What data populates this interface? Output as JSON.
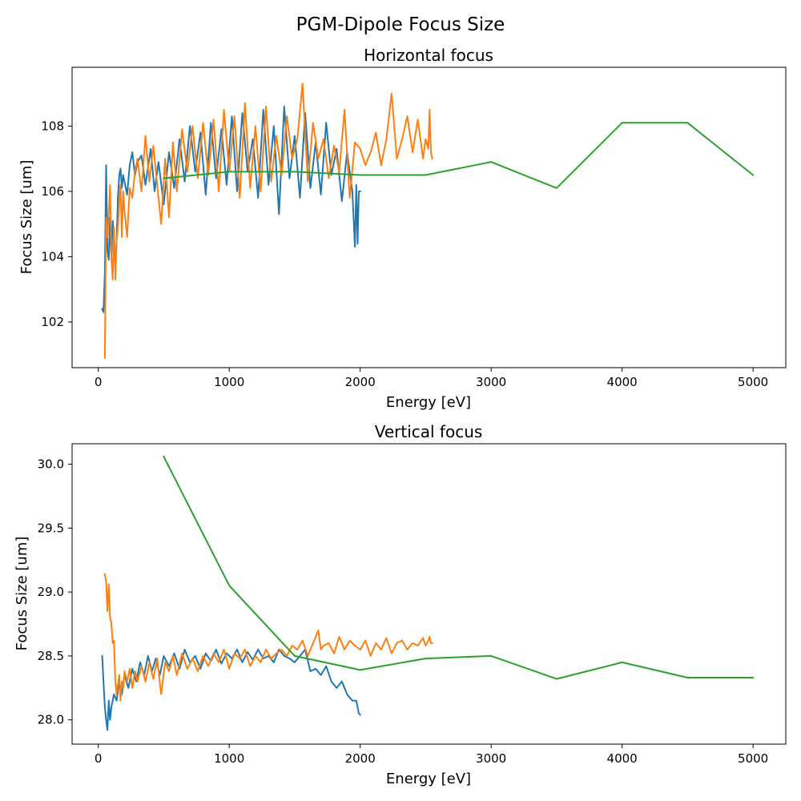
{
  "figure": {
    "title": "PGM-Dipole Focus Size"
  },
  "chart_data": [
    {
      "type": "line",
      "title": "Horizontal focus",
      "xlabel": "Energy [eV]",
      "ylabel": "Focus Size [um]",
      "xlim": [
        -200,
        5250
      ],
      "ylim": [
        100.6,
        109.8
      ],
      "xticks": [
        0,
        1000,
        2000,
        3000,
        4000,
        5000
      ],
      "yticks": [
        102,
        104,
        106,
        108
      ],
      "grid": false,
      "series": [
        {
          "color": "#1f77b4",
          "x": [
            30,
            40,
            50,
            60,
            70,
            80,
            90,
            100,
            110,
            120,
            130,
            140,
            150,
            160,
            170,
            180,
            190,
            200,
            220,
            240,
            260,
            280,
            300,
            330,
            360,
            400,
            430,
            460,
            500,
            540,
            580,
            620,
            660,
            700,
            740,
            780,
            820,
            860,
            900,
            940,
            980,
            1020,
            1060,
            1100,
            1140,
            1180,
            1220,
            1260,
            1300,
            1340,
            1380,
            1420,
            1460,
            1500,
            1540,
            1580,
            1620,
            1660,
            1700,
            1740,
            1780,
            1820,
            1860,
            1900,
            1940,
            1960,
            1970,
            1980,
            1990,
            2000
          ],
          "y": [
            102.4,
            102.3,
            103.5,
            106.8,
            104.2,
            103.9,
            105.2,
            104.0,
            105.1,
            104.6,
            103.6,
            104.5,
            105.8,
            106.5,
            106.7,
            106.1,
            106.5,
            106.3,
            105.9,
            106.8,
            107.2,
            106.5,
            106.9,
            107.1,
            106.2,
            107.3,
            106.0,
            106.9,
            105.6,
            107.2,
            106.1,
            107.6,
            106.3,
            108.0,
            106.6,
            107.8,
            105.9,
            108.1,
            106.4,
            107.9,
            106.2,
            108.3,
            106.0,
            108.4,
            106.6,
            107.6,
            105.8,
            108.5,
            106.2,
            108.0,
            105.3,
            108.6,
            106.4,
            107.7,
            105.8,
            108.4,
            106.1,
            107.5,
            105.9,
            108.1,
            106.5,
            107.3,
            105.7,
            107.2,
            106.0,
            104.3,
            106.2,
            104.4,
            106.0,
            106.0
          ]
        },
        {
          "color": "#ff7f0e",
          "x": [
            50,
            60,
            70,
            80,
            90,
            100,
            110,
            120,
            130,
            140,
            150,
            160,
            170,
            180,
            190,
            200,
            220,
            240,
            260,
            280,
            300,
            330,
            360,
            390,
            420,
            450,
            480,
            510,
            540,
            570,
            600,
            640,
            680,
            720,
            760,
            800,
            840,
            880,
            920,
            960,
            1000,
            1040,
            1080,
            1120,
            1160,
            1200,
            1240,
            1280,
            1320,
            1360,
            1400,
            1440,
            1480,
            1520,
            1560,
            1600,
            1640,
            1680,
            1720,
            1760,
            1800,
            1840,
            1880,
            1920,
            1960,
            2000,
            2040,
            2080,
            2120,
            2160,
            2200,
            2240,
            2280,
            2320,
            2360,
            2400,
            2440,
            2480,
            2500,
            2520,
            2530,
            2540,
            2550
          ],
          "y": [
            100.9,
            105.2,
            104.6,
            105.3,
            106.2,
            104.0,
            103.3,
            104.9,
            103.3,
            104.5,
            104.9,
            105.7,
            106.2,
            104.6,
            106.0,
            105.4,
            104.6,
            106.1,
            105.8,
            106.6,
            107.0,
            106.0,
            107.7,
            106.3,
            107.4,
            106.2,
            105.0,
            107.0,
            105.2,
            107.5,
            106.0,
            107.9,
            106.6,
            108.0,
            106.4,
            108.1,
            106.5,
            108.2,
            106.0,
            108.5,
            106.6,
            108.3,
            105.8,
            108.7,
            106.1,
            108.0,
            106.0,
            108.6,
            106.3,
            107.7,
            106.5,
            108.3,
            107.0,
            107.6,
            109.3,
            106.3,
            108.1,
            107.0,
            107.6,
            106.4,
            107.4,
            106.6,
            108.5,
            105.8,
            107.5,
            107.3,
            106.8,
            107.2,
            107.8,
            106.8,
            107.6,
            109.0,
            107.0,
            107.6,
            108.3,
            107.2,
            108.2,
            107.0,
            107.6,
            107.3,
            108.5,
            107.2,
            107.0
          ]
        },
        {
          "color": "#2ca02c",
          "x": [
            500,
            1000,
            1500,
            2000,
            2500,
            3000,
            3500,
            4000,
            4500,
            5000
          ],
          "y": [
            106.4,
            106.6,
            106.6,
            106.5,
            106.5,
            106.9,
            106.1,
            108.1,
            108.1,
            106.5
          ]
        }
      ]
    },
    {
      "type": "line",
      "title": "Vertical focus",
      "xlabel": "Energy [eV]",
      "ylabel": "Focus Size [um]",
      "xlim": [
        -200,
        5250
      ],
      "ylim": [
        27.81,
        30.16
      ],
      "xticks": [
        0,
        1000,
        2000,
        3000,
        4000,
        5000
      ],
      "yticks": [
        28.0,
        28.5,
        29.0,
        29.5,
        30.0
      ],
      "grid": false,
      "series": [
        {
          "color": "#1f77b4",
          "x": [
            30,
            40,
            50,
            60,
            70,
            80,
            90,
            100,
            110,
            120,
            140,
            160,
            180,
            200,
            230,
            260,
            290,
            320,
            350,
            380,
            410,
            440,
            470,
            500,
            540,
            580,
            620,
            660,
            700,
            740,
            780,
            820,
            860,
            900,
            940,
            980,
            1020,
            1060,
            1100,
            1140,
            1180,
            1220,
            1260,
            1300,
            1340,
            1380,
            1420,
            1460,
            1500,
            1540,
            1580,
            1620,
            1660,
            1700,
            1740,
            1780,
            1820,
            1860,
            1900,
            1940,
            1970,
            1990,
            2000
          ],
          "y": [
            28.5,
            28.3,
            28.1,
            28.0,
            27.92,
            28.15,
            28.0,
            28.1,
            28.15,
            28.2,
            28.15,
            28.3,
            28.2,
            28.35,
            28.25,
            28.4,
            28.3,
            28.45,
            28.35,
            28.5,
            28.38,
            28.48,
            28.35,
            28.5,
            28.42,
            28.52,
            28.4,
            28.55,
            28.45,
            28.5,
            28.4,
            28.52,
            28.46,
            28.55,
            28.44,
            28.52,
            28.48,
            28.55,
            28.45,
            28.53,
            28.47,
            28.55,
            28.48,
            28.5,
            28.45,
            28.55,
            28.5,
            28.48,
            28.45,
            28.5,
            28.55,
            28.38,
            28.4,
            28.35,
            28.42,
            28.3,
            28.25,
            28.3,
            28.2,
            28.15,
            28.15,
            28.05,
            28.04
          ]
        },
        {
          "color": "#ff7f0e",
          "x": [
            50,
            60,
            70,
            80,
            90,
            100,
            110,
            120,
            130,
            140,
            150,
            160,
            170,
            180,
            190,
            200,
            220,
            240,
            260,
            280,
            300,
            330,
            360,
            390,
            420,
            450,
            480,
            510,
            540,
            570,
            600,
            640,
            680,
            720,
            760,
            800,
            840,
            880,
            920,
            960,
            1000,
            1040,
            1080,
            1120,
            1160,
            1200,
            1240,
            1280,
            1320,
            1360,
            1400,
            1440,
            1480,
            1520,
            1560,
            1600,
            1640,
            1680,
            1700,
            1720,
            1760,
            1800,
            1840,
            1880,
            1920,
            1960,
            2000,
            2040,
            2080,
            2120,
            2160,
            2200,
            2240,
            2280,
            2320,
            2360,
            2400,
            2440,
            2480,
            2500,
            2520,
            2530,
            2540,
            2550
          ],
          "y": [
            29.14,
            29.08,
            28.85,
            29.06,
            28.8,
            28.76,
            28.6,
            28.62,
            28.3,
            28.2,
            28.28,
            28.35,
            28.15,
            28.3,
            28.25,
            28.38,
            28.3,
            28.4,
            28.25,
            28.38,
            28.3,
            28.42,
            28.3,
            28.45,
            28.32,
            28.48,
            28.2,
            28.45,
            28.38,
            28.5,
            28.35,
            28.52,
            28.4,
            28.48,
            28.38,
            28.5,
            28.42,
            28.52,
            28.45,
            28.55,
            28.4,
            28.52,
            28.48,
            28.55,
            28.42,
            28.5,
            28.45,
            28.55,
            28.48,
            28.52,
            28.55,
            28.5,
            28.58,
            28.55,
            28.62,
            28.5,
            28.6,
            28.7,
            28.55,
            28.58,
            28.6,
            28.52,
            28.65,
            28.55,
            28.62,
            28.58,
            28.55,
            28.62,
            28.5,
            28.6,
            28.55,
            28.64,
            28.52,
            28.6,
            28.62,
            28.55,
            28.6,
            28.58,
            28.64,
            28.58,
            28.62,
            28.65,
            28.6,
            28.6
          ]
        },
        {
          "color": "#2ca02c",
          "x": [
            500,
            1000,
            1500,
            2000,
            2500,
            3000,
            3500,
            4000,
            4500,
            5000
          ],
          "y": [
            30.06,
            29.05,
            28.5,
            28.39,
            28.48,
            28.5,
            28.32,
            28.45,
            28.33,
            28.33
          ]
        }
      ]
    }
  ]
}
